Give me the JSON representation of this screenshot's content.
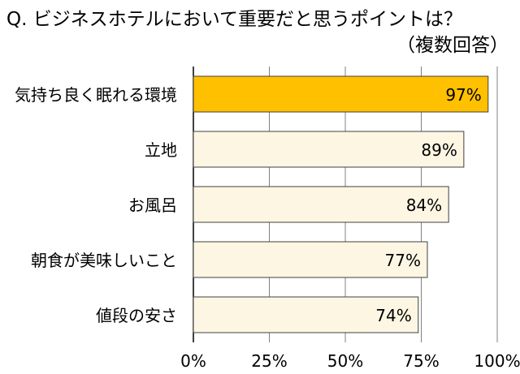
{
  "title": "Q. ビジネスホテルにおいて重要だと思うポイントは？",
  "subtitle": "（複数回答）",
  "colors": {
    "highlight_bar": "#FFC000",
    "bar": "#FDF6E3",
    "bar_stroke": "#404040",
    "grid": "#808080"
  },
  "chart_data": {
    "type": "bar",
    "orientation": "horizontal",
    "categories": [
      "気持ち良く眠れる環境",
      "立地",
      "お風呂",
      "朝食が美味しいこと",
      "値段の安さ"
    ],
    "values": [
      97,
      89,
      84,
      77,
      74
    ],
    "value_labels": [
      "97%",
      "89%",
      "84%",
      "77%",
      "74%"
    ],
    "xlim": [
      0,
      100
    ],
    "xticks": [
      0,
      25,
      50,
      75,
      100
    ],
    "xtick_labels": [
      "0%",
      "25%",
      "50%",
      "75%",
      "100%"
    ],
    "highlight_index": 0,
    "grid": true
  }
}
